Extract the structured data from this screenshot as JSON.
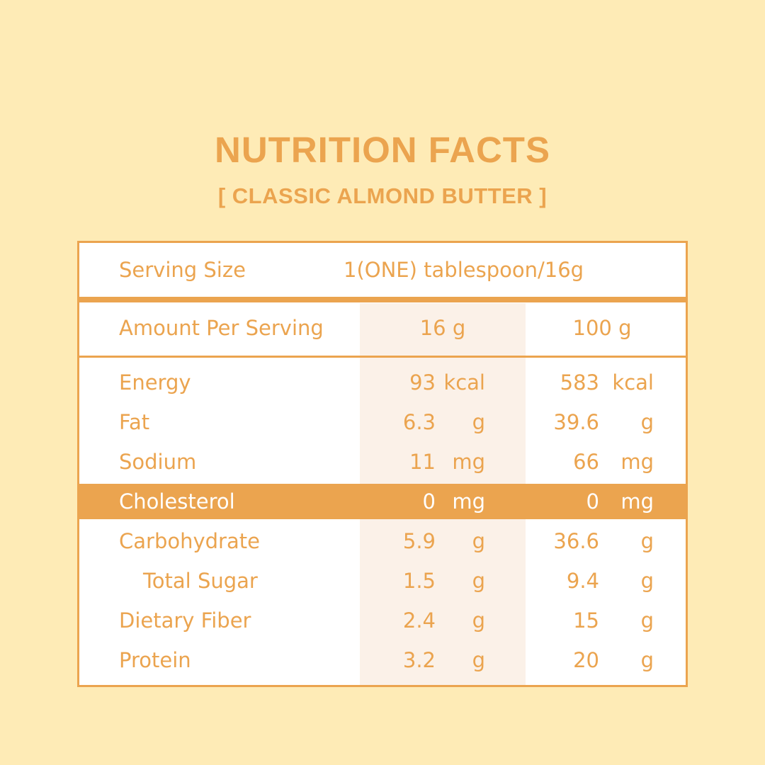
{
  "title": "NUTRITION FACTS",
  "subtitle": "[ CLASSIC ALMOND BUTTER ]",
  "serving": {
    "label": "Serving Size",
    "value": "1(ONE) tablespoon/16g"
  },
  "header": {
    "label": "Amount Per Serving",
    "col1": "16 g",
    "col2": "100 g"
  },
  "rows": [
    {
      "label": "Energy",
      "v1": "93",
      "u1": "kcal",
      "v2": "583",
      "u2": "kcal"
    },
    {
      "label": "Fat",
      "v1": "6.3",
      "u1": "g",
      "v2": "39.6",
      "u2": "g"
    },
    {
      "label": "Sodium",
      "v1": "11",
      "u1": "mg",
      "v2": "66",
      "u2": "mg"
    },
    {
      "label": "Cholesterol",
      "v1": "0",
      "u1": "mg",
      "v2": "0",
      "u2": "mg"
    },
    {
      "label": "Carbohydrate",
      "v1": "5.9",
      "u1": "g",
      "v2": "36.6",
      "u2": "g"
    },
    {
      "label": "Total Sugar",
      "v1": "1.5",
      "u1": "g",
      "v2": "9.4",
      "u2": "g"
    },
    {
      "label": "Dietary Fiber",
      "v1": "2.4",
      "u1": "g",
      "v2": "15",
      "u2": "g"
    },
    {
      "label": "Protein",
      "v1": "3.2",
      "u1": "g",
      "v2": "20",
      "u2": "g"
    }
  ]
}
